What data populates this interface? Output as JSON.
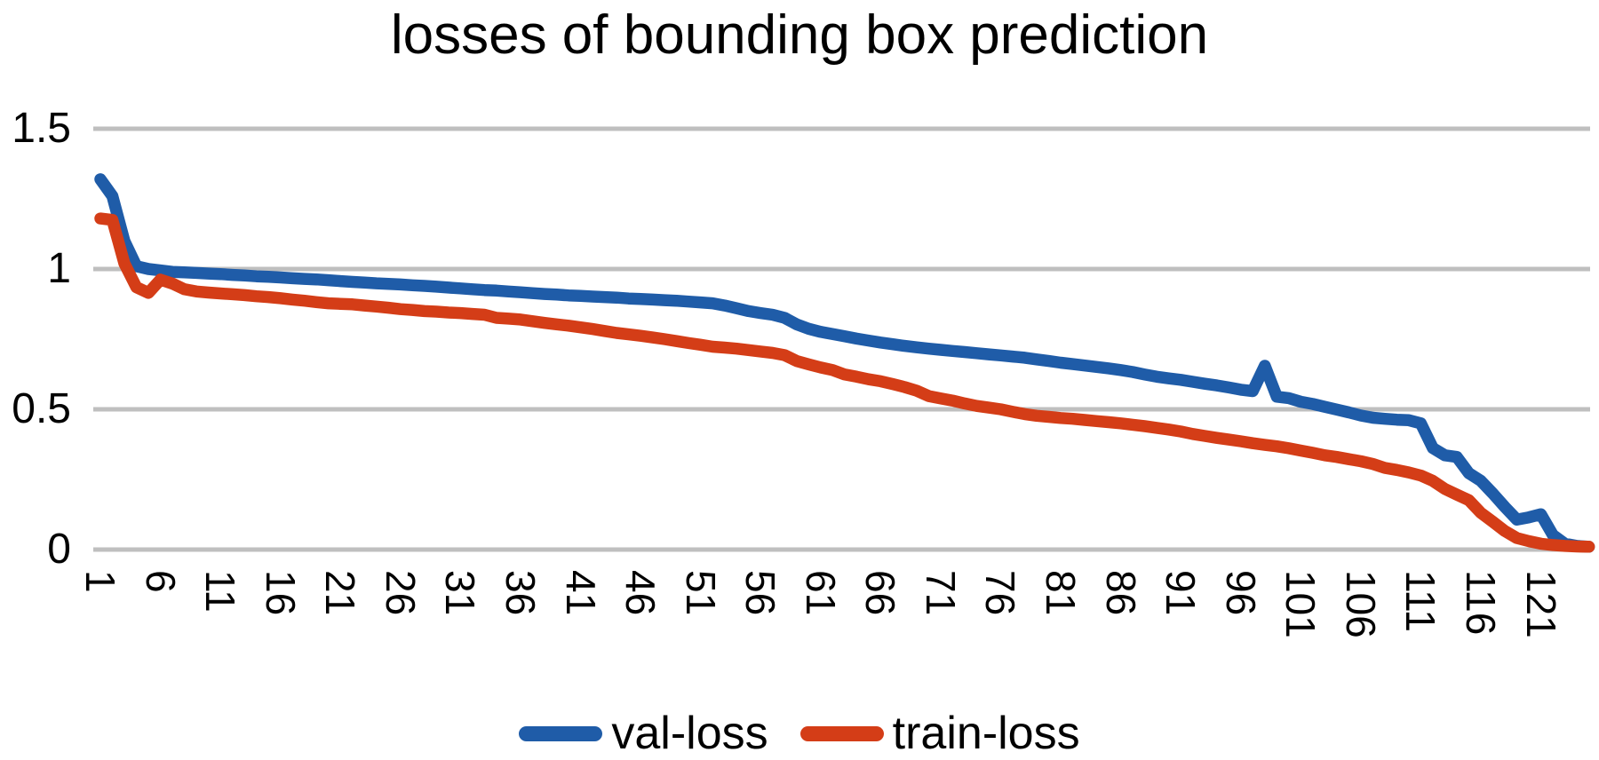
{
  "page": {
    "background": "#FFFFFF"
  },
  "chart_data": {
    "type": "line",
    "title": "losses of bounding box prediction",
    "x_axis": {
      "tick_labels": [
        "1",
        "6",
        "11",
        "16",
        "21",
        "26",
        "31",
        "36",
        "41",
        "46",
        "51",
        "56",
        "61",
        "66",
        "71",
        "76",
        "81",
        "86",
        "91",
        "96",
        "101",
        "106",
        "111",
        "116",
        "121"
      ],
      "tick_values": [
        1,
        6,
        11,
        16,
        21,
        26,
        31,
        36,
        41,
        46,
        51,
        56,
        61,
        66,
        71,
        76,
        81,
        86,
        91,
        96,
        101,
        106,
        111,
        116,
        121
      ],
      "range": [
        1,
        125
      ],
      "label_rotation_deg": 90
    },
    "y_axis": {
      "tick_labels": [
        "1.5",
        "1",
        "0.5",
        "0"
      ],
      "tick_values": [
        1.5,
        1,
        0.5,
        0
      ],
      "range": [
        0,
        1.5
      ],
      "gridlines": true
    },
    "gridline_color": "#BFBFBF",
    "text_color": "#000000",
    "legend": {
      "position": "bottom"
    },
    "series": [
      {
        "name": "val-loss",
        "color": "#1F5CA8",
        "x_start": 1,
        "x_step": 1,
        "values": [
          1.32,
          1.26,
          1.1,
          1.01,
          1.0,
          0.995,
          0.99,
          0.988,
          0.986,
          0.984,
          0.982,
          0.979,
          0.977,
          0.974,
          0.972,
          0.97,
          0.967,
          0.965,
          0.963,
          0.96,
          0.957,
          0.954,
          0.952,
          0.949,
          0.947,
          0.945,
          0.942,
          0.94,
          0.937,
          0.934,
          0.931,
          0.928,
          0.925,
          0.923,
          0.92,
          0.917,
          0.914,
          0.911,
          0.909,
          0.906,
          0.904,
          0.902,
          0.9,
          0.898,
          0.895,
          0.893,
          0.891,
          0.889,
          0.887,
          0.884,
          0.881,
          0.878,
          0.87,
          0.86,
          0.85,
          0.843,
          0.837,
          0.826,
          0.803,
          0.787,
          0.776,
          0.768,
          0.76,
          0.752,
          0.745,
          0.738,
          0.732,
          0.726,
          0.721,
          0.716,
          0.712,
          0.708,
          0.704,
          0.7,
          0.696,
          0.692,
          0.688,
          0.684,
          0.678,
          0.672,
          0.666,
          0.661,
          0.656,
          0.651,
          0.646,
          0.64,
          0.633,
          0.624,
          0.616,
          0.61,
          0.605,
          0.598,
          0.591,
          0.585,
          0.578,
          0.57,
          0.565,
          0.655,
          0.545,
          0.54,
          0.527,
          0.519,
          0.509,
          0.499,
          0.489,
          0.478,
          0.47,
          0.466,
          0.463,
          0.461,
          0.45,
          0.362,
          0.336,
          0.33,
          0.272,
          0.245,
          0.2,
          0.152,
          0.107,
          0.115,
          0.126,
          0.052,
          0.021,
          0.013,
          0.01
        ]
      },
      {
        "name": "train-loss",
        "color": "#D43D17",
        "x_start": 1,
        "x_step": 1,
        "values": [
          1.18,
          1.175,
          1.02,
          0.935,
          0.915,
          0.962,
          0.948,
          0.928,
          0.92,
          0.916,
          0.913,
          0.91,
          0.907,
          0.903,
          0.9,
          0.896,
          0.891,
          0.887,
          0.882,
          0.878,
          0.876,
          0.874,
          0.87,
          0.866,
          0.862,
          0.857,
          0.854,
          0.85,
          0.848,
          0.845,
          0.843,
          0.84,
          0.837,
          0.826,
          0.823,
          0.82,
          0.814,
          0.808,
          0.803,
          0.798,
          0.792,
          0.786,
          0.779,
          0.772,
          0.767,
          0.762,
          0.756,
          0.75,
          0.743,
          0.736,
          0.73,
          0.723,
          0.72,
          0.716,
          0.711,
          0.706,
          0.701,
          0.693,
          0.672,
          0.66,
          0.649,
          0.64,
          0.624,
          0.616,
          0.607,
          0.6,
          0.59,
          0.579,
          0.566,
          0.547,
          0.539,
          0.531,
          0.521,
          0.512,
          0.506,
          0.5,
          0.491,
          0.483,
          0.477,
          0.473,
          0.469,
          0.466,
          0.462,
          0.458,
          0.454,
          0.45,
          0.445,
          0.44,
          0.434,
          0.428,
          0.421,
          0.412,
          0.405,
          0.398,
          0.392,
          0.386,
          0.379,
          0.373,
          0.368,
          0.361,
          0.353,
          0.345,
          0.336,
          0.33,
          0.322,
          0.315,
          0.305,
          0.291,
          0.284,
          0.275,
          0.264,
          0.245,
          0.216,
          0.196,
          0.176,
          0.131,
          0.099,
          0.066,
          0.041,
          0.03,
          0.021,
          0.016,
          0.013,
          0.011,
          0.01
        ]
      }
    ]
  }
}
